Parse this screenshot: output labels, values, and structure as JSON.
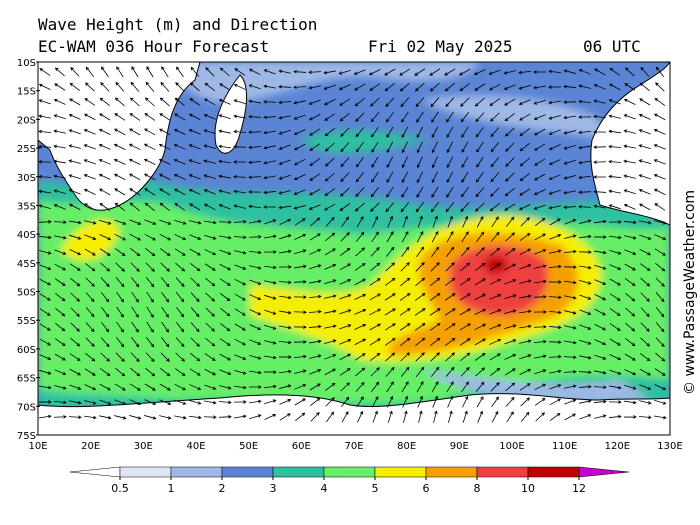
{
  "header": {
    "title": "Wave Height (m) and Direction",
    "model": "EC-WAM 036 Hour Forecast",
    "date": "Fri 02 May 2025",
    "time": "06 UTC"
  },
  "map": {
    "lat_labels": [
      "10S",
      "15S",
      "20S",
      "25S",
      "30S",
      "35S",
      "40S",
      "45S",
      "50S",
      "55S",
      "60S",
      "65S",
      "70S",
      "75S"
    ],
    "lon_labels": [
      "10E",
      "20E",
      "30E",
      "40E",
      "50E",
      "60E",
      "70E",
      "80E",
      "90E",
      "100E",
      "110E",
      "120E",
      "130E"
    ],
    "watermark": "© www.PassageWeather.com"
  },
  "colorbar": {
    "ticks": [
      0.5,
      1,
      2,
      3,
      4,
      5,
      6,
      8,
      10,
      12
    ],
    "low_color": "#ffffff",
    "colors": [
      "#dde6f6",
      "#9fb8e6",
      "#5b85d4",
      "#2fc0a0",
      "#66ee66",
      "#f6ee00",
      "#f5a000",
      "#ef4040",
      "#c00000"
    ],
    "high_color": "#cc00cc"
  }
}
